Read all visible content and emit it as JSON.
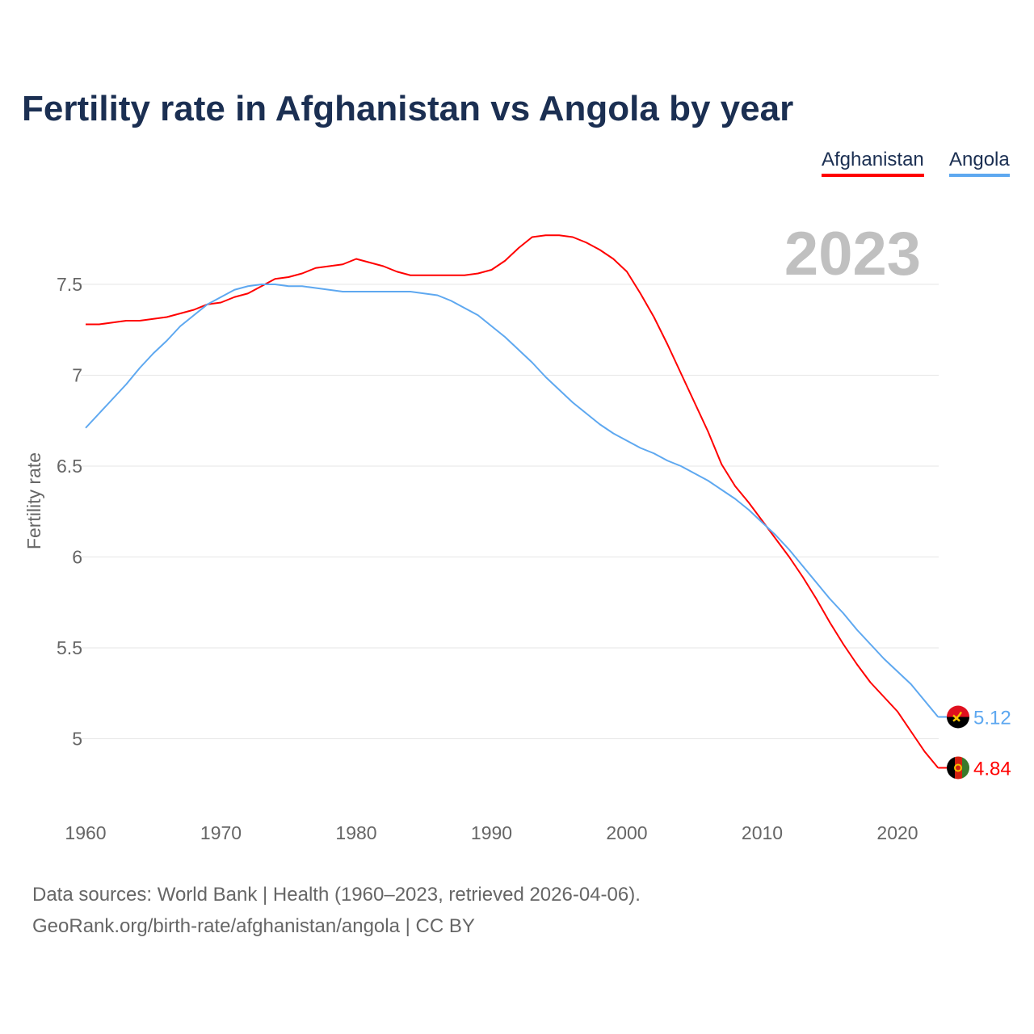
{
  "title": "Fertility rate in Afghanistan vs Angola by year",
  "year_label": "2023",
  "footer": {
    "line1": "Data sources: World Bank | Health (1960–2023, retrieved 2026-04-06).",
    "line2": "GeoRank.org/birth-rate/afghanistan/angola | CC BY"
  },
  "chart_data": {
    "type": "line",
    "title": "Fertility rate in Afghanistan vs Angola by year",
    "xlabel": "",
    "ylabel": "Fertility rate",
    "xlim": [
      1960,
      2023
    ],
    "ylim": [
      4.7,
      7.9
    ],
    "grid": true,
    "legend_position": "top-right",
    "x_ticks": [
      "1960",
      "1970",
      "1980",
      "1990",
      "2000",
      "2010",
      "2020"
    ],
    "y_ticks": [
      "5",
      "5.5",
      "6",
      "6.5",
      "7",
      "7.5"
    ],
    "x": [
      1960,
      1961,
      1962,
      1963,
      1964,
      1965,
      1966,
      1967,
      1968,
      1969,
      1970,
      1971,
      1972,
      1973,
      1974,
      1975,
      1976,
      1977,
      1978,
      1979,
      1980,
      1981,
      1982,
      1983,
      1984,
      1985,
      1986,
      1987,
      1988,
      1989,
      1990,
      1991,
      1992,
      1993,
      1994,
      1995,
      1996,
      1997,
      1998,
      1999,
      2000,
      2001,
      2002,
      2003,
      2004,
      2005,
      2006,
      2007,
      2008,
      2009,
      2010,
      2011,
      2012,
      2013,
      2014,
      2015,
      2016,
      2017,
      2018,
      2019,
      2020,
      2021,
      2022,
      2023
    ],
    "series": [
      {
        "name": "Afghanistan",
        "color": "#ff0000",
        "end_label": "4.84",
        "flag": "afghanistan-flag",
        "values": [
          7.28,
          7.28,
          7.29,
          7.3,
          7.3,
          7.31,
          7.32,
          7.34,
          7.36,
          7.39,
          7.4,
          7.43,
          7.45,
          7.49,
          7.53,
          7.54,
          7.56,
          7.59,
          7.6,
          7.61,
          7.64,
          7.62,
          7.6,
          7.57,
          7.55,
          7.55,
          7.55,
          7.55,
          7.55,
          7.56,
          7.58,
          7.63,
          7.7,
          7.76,
          7.77,
          7.77,
          7.76,
          7.73,
          7.69,
          7.64,
          7.57,
          7.45,
          7.32,
          7.17,
          7.01,
          6.85,
          6.69,
          6.51,
          6.39,
          6.3,
          6.2,
          6.1,
          6.0,
          5.89,
          5.77,
          5.64,
          5.52,
          5.41,
          5.31,
          5.23,
          5.15,
          5.04,
          4.93,
          4.84
        ]
      },
      {
        "name": "Angola",
        "color": "#5ea8f0",
        "end_label": "5.12",
        "flag": "angola-flag",
        "values": [
          6.71,
          6.79,
          6.87,
          6.95,
          7.04,
          7.12,
          7.19,
          7.27,
          7.33,
          7.39,
          7.43,
          7.47,
          7.49,
          7.5,
          7.5,
          7.49,
          7.49,
          7.48,
          7.47,
          7.46,
          7.46,
          7.46,
          7.46,
          7.46,
          7.46,
          7.45,
          7.44,
          7.41,
          7.37,
          7.33,
          7.27,
          7.21,
          7.14,
          7.07,
          6.99,
          6.92,
          6.85,
          6.79,
          6.73,
          6.68,
          6.64,
          6.6,
          6.57,
          6.53,
          6.5,
          6.46,
          6.42,
          6.37,
          6.32,
          6.26,
          6.19,
          6.12,
          6.04,
          5.95,
          5.86,
          5.77,
          5.69,
          5.6,
          5.52,
          5.44,
          5.37,
          5.3,
          5.21,
          5.12
        ]
      }
    ]
  }
}
